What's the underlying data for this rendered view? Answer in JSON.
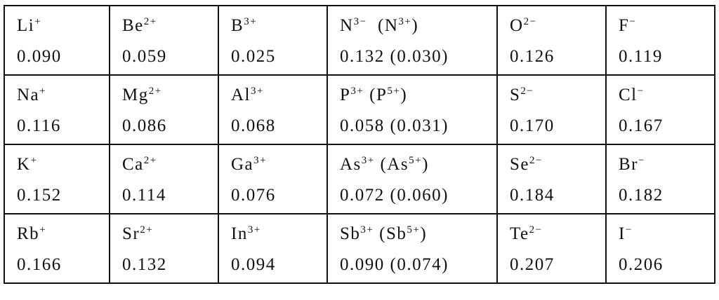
{
  "table": {
    "rows": [
      [
        {
          "ion": [
            "Li",
            "+"
          ],
          "value": "0.090"
        },
        {
          "ion": [
            "Be",
            "2+"
          ],
          "value": "0.059"
        },
        {
          "ion": [
            "B",
            "3+"
          ],
          "value": "0.025"
        },
        {
          "ion": [
            "N",
            "3−",
            "  (N",
            "3+",
            ")"
          ],
          "value": "0.132 (0.030)"
        },
        {
          "ion": [
            "O",
            "2−"
          ],
          "value": "0.126"
        },
        {
          "ion": [
            "F",
            "−"
          ],
          "value": "0.119"
        }
      ],
      [
        {
          "ion": [
            "Na",
            "+"
          ],
          "value": "0.116"
        },
        {
          "ion": [
            "Mg",
            "2+"
          ],
          "value": "0.086"
        },
        {
          "ion": [
            "Al",
            "3+"
          ],
          "value": "0.068"
        },
        {
          "ion": [
            "P",
            "3+",
            " (P",
            "5+",
            ")"
          ],
          "value": "0.058 (0.031)"
        },
        {
          "ion": [
            "S",
            "2−"
          ],
          "value": "0.170"
        },
        {
          "ion": [
            "Cl",
            "−"
          ],
          "value": "0.167"
        }
      ],
      [
        {
          "ion": [
            "K",
            "+"
          ],
          "value": "0.152"
        },
        {
          "ion": [
            "Ca",
            "2+"
          ],
          "value": "0.114"
        },
        {
          "ion": [
            "Ga",
            "3+"
          ],
          "value": "0.076"
        },
        {
          "ion": [
            "As",
            "3+",
            " (As",
            "5+",
            ")"
          ],
          "value": "0.072 (0.060)"
        },
        {
          "ion": [
            "Se",
            "2−"
          ],
          "value": "0.184"
        },
        {
          "ion": [
            "Br",
            "−"
          ],
          "value": "0.182"
        }
      ],
      [
        {
          "ion": [
            "Rb",
            "+"
          ],
          "value": "0.166"
        },
        {
          "ion": [
            "Sr",
            "2+"
          ],
          "value": "0.132"
        },
        {
          "ion": [
            "In",
            "3+"
          ],
          "value": "0.094"
        },
        {
          "ion": [
            "Sb",
            "3+",
            " (Sb",
            "5+",
            ")"
          ],
          "value": "0.090 (0.074)"
        },
        {
          "ion": [
            "Te",
            "2−"
          ],
          "value": "0.207"
        },
        {
          "ion": [
            "I",
            "−"
          ],
          "value": "0.206"
        }
      ]
    ]
  }
}
